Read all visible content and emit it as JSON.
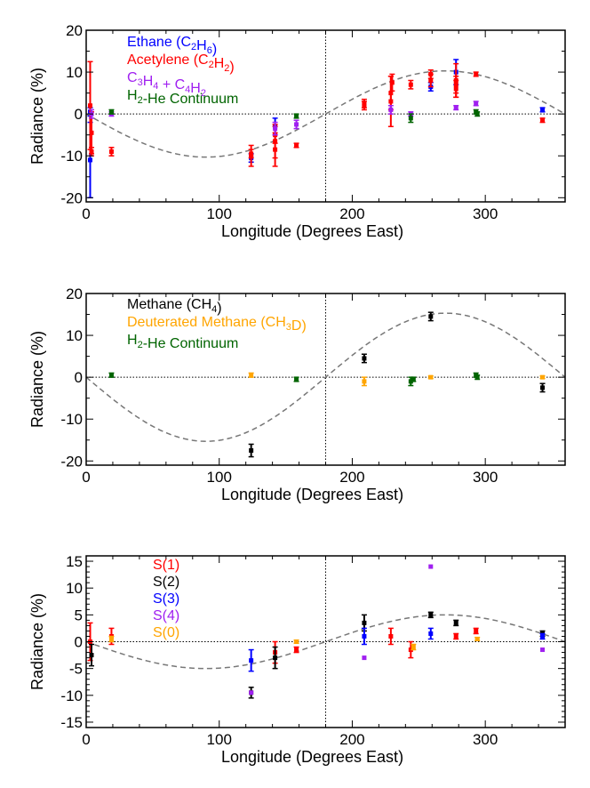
{
  "chart_data": [
    {
      "type": "scatter",
      "xlabel": "Longitude (Degrees East)",
      "ylabel": "Radiance (%)",
      "xlim": [
        0,
        360
      ],
      "ylim": [
        -21,
        20
      ],
      "xticks": [
        0,
        100,
        200,
        300
      ],
      "yticks": [
        -20,
        -10,
        0,
        10,
        20
      ],
      "x_minor_step": 20,
      "y_minor_step": 5,
      "model": {
        "amplitude": 10.3,
        "phase_deg": 270
      },
      "legend": [
        {
          "base": "Ethane (C",
          "sub": "2",
          "mid": "H",
          "sub2": "6",
          "end": ")",
          "color": "#0000ff"
        },
        {
          "base": "Acetylene (C",
          "sub": "2",
          "mid": "H",
          "sub2": "2",
          "end": ")",
          "color": "#ff0000"
        },
        {
          "base": "C",
          "sub": "3",
          "mid": "H",
          "sub2": "4",
          "end": " + C",
          "sub3": "4",
          "mid3": "H",
          "sub4": "2",
          "end4": "",
          "color": "#a020f0"
        },
        {
          "base": "H",
          "sub": "2",
          "mid": "-He Continuum",
          "sub2": "",
          "end": "",
          "color": "#006400"
        }
      ],
      "series": [
        {
          "name": "Ethane (C2H6)",
          "color": "#0000ff",
          "points": [
            {
              "x": 3,
              "y": 0.5,
              "err": 1
            },
            {
              "x": 3,
              "y": -11,
              "err": 9
            },
            {
              "x": 124,
              "y": -10.5,
              "err": 1
            },
            {
              "x": 142,
              "y": -3,
              "err": 2
            },
            {
              "x": 259,
              "y": 6.5,
              "err": 1
            },
            {
              "x": 278,
              "y": 10,
              "err": 3
            },
            {
              "x": 343,
              "y": 1,
              "err": 0.5
            }
          ]
        },
        {
          "name": "Acetylene (C2H2)",
          "color": "#ff0000",
          "points": [
            {
              "x": 3,
              "y": 2,
              "err": 10.5
            },
            {
              "x": 4,
              "y": -4.5,
              "err": 5
            },
            {
              "x": 4,
              "y": -9,
              "err": 1
            },
            {
              "x": 19,
              "y": -9,
              "err": 1
            },
            {
              "x": 124,
              "y": -10,
              "err": 2.5
            },
            {
              "x": 124,
              "y": -9.5,
              "err": 1
            },
            {
              "x": 142,
              "y": -8.5,
              "err": 4
            },
            {
              "x": 142,
              "y": -6.5,
              "err": 4
            },
            {
              "x": 142,
              "y": -5,
              "err": 2
            },
            {
              "x": 158,
              "y": -7.5,
              "err": 0.5
            },
            {
              "x": 209,
              "y": 2.5,
              "err": 1
            },
            {
              "x": 209,
              "y": 2,
              "err": 1
            },
            {
              "x": 229,
              "y": 3,
              "err": 6
            },
            {
              "x": 229,
              "y": 5,
              "err": 4
            },
            {
              "x": 230,
              "y": 7.5,
              "err": 2
            },
            {
              "x": 244,
              "y": 7,
              "err": 1
            },
            {
              "x": 259,
              "y": 8,
              "err": 1.5
            },
            {
              "x": 259,
              "y": 9.5,
              "err": 1
            },
            {
              "x": 278,
              "y": 7,
              "err": 2
            },
            {
              "x": 278,
              "y": 8,
              "err": 4
            },
            {
              "x": 278,
              "y": 6,
              "err": 2
            },
            {
              "x": 293,
              "y": 9.5,
              "err": 0.5
            },
            {
              "x": 343,
              "y": -1.5,
              "err": 0.5
            }
          ]
        },
        {
          "name": "C3H4 + C4H2",
          "color": "#a020f0",
          "points": [
            {
              "x": 4,
              "y": 0,
              "err": 1
            },
            {
              "x": 19,
              "y": 0,
              "err": 0.5
            },
            {
              "x": 142,
              "y": -3.5,
              "err": 1.5
            },
            {
              "x": 158,
              "y": -2.5,
              "err": 1
            },
            {
              "x": 229,
              "y": 1,
              "err": 1
            },
            {
              "x": 244,
              "y": 0,
              "err": 0.5
            },
            {
              "x": 278,
              "y": 1.5,
              "err": 0.5
            },
            {
              "x": 293,
              "y": 2.5,
              "err": 0.5
            }
          ]
        },
        {
          "name": "H2-He Continuum",
          "color": "#006400",
          "points": [
            {
              "x": 19,
              "y": 0.5,
              "err": 0.5
            },
            {
              "x": 158,
              "y": -0.5,
              "err": 0.5
            },
            {
              "x": 244,
              "y": -1,
              "err": 1
            },
            {
              "x": 293,
              "y": 0.5,
              "err": 0.5
            },
            {
              "x": 294,
              "y": 0,
              "err": 0.5
            }
          ]
        }
      ]
    },
    {
      "type": "scatter",
      "xlabel": "Longitude (Degrees East)",
      "ylabel": "Radiance (%)",
      "xlim": [
        0,
        360
      ],
      "ylim": [
        -21,
        20
      ],
      "xticks": [
        0,
        100,
        200,
        300
      ],
      "yticks": [
        -20,
        -10,
        0,
        10,
        20
      ],
      "x_minor_step": 20,
      "y_minor_step": 5,
      "model": {
        "amplitude": 15.3,
        "phase_deg": 270
      },
      "legend": [
        {
          "base": "Methane (CH",
          "sub": "4",
          "mid": ")",
          "sub2": "",
          "end": "",
          "color": "#000000"
        },
        {
          "base": "Deuterated Methane (CH",
          "sub": "3",
          "mid": "D)",
          "sub2": "",
          "end": "",
          "color": "#ffa500"
        },
        {
          "base": "H",
          "sub": "2",
          "mid": "-He Continuum",
          "sub2": "",
          "end": "",
          "color": "#006400"
        }
      ],
      "series": [
        {
          "name": "Methane (CH4)",
          "color": "#000000",
          "points": [
            {
              "x": 124,
              "y": -17.5,
              "err": 1.5
            },
            {
              "x": 209,
              "y": 4.5,
              "err": 1
            },
            {
              "x": 259,
              "y": 14.5,
              "err": 1
            },
            {
              "x": 343,
              "y": -2.5,
              "err": 1
            }
          ]
        },
        {
          "name": "Deuterated Methane (CH3D)",
          "color": "#ffa500",
          "points": [
            {
              "x": 124,
              "y": 0.5,
              "err": 0.5
            },
            {
              "x": 209,
              "y": -1,
              "err": 1
            },
            {
              "x": 259,
              "y": 0,
              "err": 0.3
            },
            {
              "x": 343,
              "y": 0,
              "err": 0.3
            }
          ]
        },
        {
          "name": "H2-He Continuum",
          "color": "#006400",
          "points": [
            {
              "x": 19,
              "y": 0.5,
              "err": 0.5
            },
            {
              "x": 158,
              "y": -0.5,
              "err": 0.5
            },
            {
              "x": 244,
              "y": -1,
              "err": 1
            },
            {
              "x": 246,
              "y": -0.5,
              "err": 0.5
            },
            {
              "x": 293,
              "y": 0.5,
              "err": 0.5
            },
            {
              "x": 294,
              "y": 0,
              "err": 0.5
            }
          ]
        }
      ]
    },
    {
      "type": "scatter",
      "xlabel": "Longitude (Degrees East)",
      "ylabel": "Radiance (%)",
      "xlim": [
        0,
        360
      ],
      "ylim": [
        -16,
        16
      ],
      "xticks": [
        0,
        100,
        200,
        300
      ],
      "yticks": [
        -15,
        -10,
        -5,
        0,
        5,
        10,
        15
      ],
      "x_minor_step": 20,
      "y_minor_step": 1,
      "model": {
        "amplitude": 5,
        "phase_deg": 270
      },
      "legend": [
        {
          "base": "S(1)",
          "sub": "",
          "mid": "",
          "sub2": "",
          "end": "",
          "color": "#ff0000"
        },
        {
          "base": "S(2)",
          "sub": "",
          "mid": "",
          "sub2": "",
          "end": "",
          "color": "#000000"
        },
        {
          "base": "S(3)",
          "sub": "",
          "mid": "",
          "sub2": "",
          "end": "",
          "color": "#0000ff"
        },
        {
          "base": "S(4)",
          "sub": "",
          "mid": "",
          "sub2": "",
          "end": "",
          "color": "#a020f0"
        },
        {
          "base": "S(0)",
          "sub": "",
          "mid": "",
          "sub2": "",
          "end": "",
          "color": "#ffa500"
        }
      ],
      "series": [
        {
          "name": "S(1)",
          "color": "#ff0000",
          "points": [
            {
              "x": 3,
              "y": 0,
              "err": 3.5
            },
            {
              "x": 19,
              "y": 1,
              "err": 1.5
            },
            {
              "x": 142,
              "y": -2,
              "err": 2
            },
            {
              "x": 158,
              "y": -1.5,
              "err": 0.5
            },
            {
              "x": 229,
              "y": 1,
              "err": 1.5
            },
            {
              "x": 244,
              "y": -1.5,
              "err": 1.5
            },
            {
              "x": 278,
              "y": 1,
              "err": 0.5
            },
            {
              "x": 293,
              "y": 2,
              "err": 0.5
            }
          ]
        },
        {
          "name": "S(2)",
          "color": "#000000",
          "points": [
            {
              "x": 4,
              "y": -2.5,
              "err": 2
            },
            {
              "x": 124,
              "y": -9.5,
              "err": 1
            },
            {
              "x": 142,
              "y": -3,
              "err": 2
            },
            {
              "x": 209,
              "y": 3.5,
              "err": 1.5
            },
            {
              "x": 259,
              "y": 5,
              "err": 0.5
            },
            {
              "x": 278,
              "y": 3.5,
              "err": 0.5
            },
            {
              "x": 343,
              "y": 1.5,
              "err": 0.5
            }
          ]
        },
        {
          "name": "S(3)",
          "color": "#0000ff",
          "points": [
            {
              "x": 124,
              "y": -3.5,
              "err": 2
            },
            {
              "x": 209,
              "y": 1,
              "err": 1.5
            },
            {
              "x": 259,
              "y": 1.5,
              "err": 1
            },
            {
              "x": 343,
              "y": 1,
              "err": 0.5
            }
          ]
        },
        {
          "name": "S(4)",
          "color": "#a020f0",
          "points": [
            {
              "x": 124,
              "y": -9.5,
              "err": 0
            },
            {
              "x": 209,
              "y": -3,
              "err": 0
            },
            {
              "x": 259,
              "y": 14,
              "err": 0
            },
            {
              "x": 343,
              "y": -1.5,
              "err": 0
            }
          ]
        },
        {
          "name": "S(0)",
          "color": "#ffa500",
          "points": [
            {
              "x": 19,
              "y": 0.5,
              "err": 0.5
            },
            {
              "x": 158,
              "y": 0,
              "err": 0.3
            },
            {
              "x": 246,
              "y": -1,
              "err": 0.5
            },
            {
              "x": 294,
              "y": 0.5,
              "err": 0.3
            }
          ]
        }
      ]
    }
  ]
}
